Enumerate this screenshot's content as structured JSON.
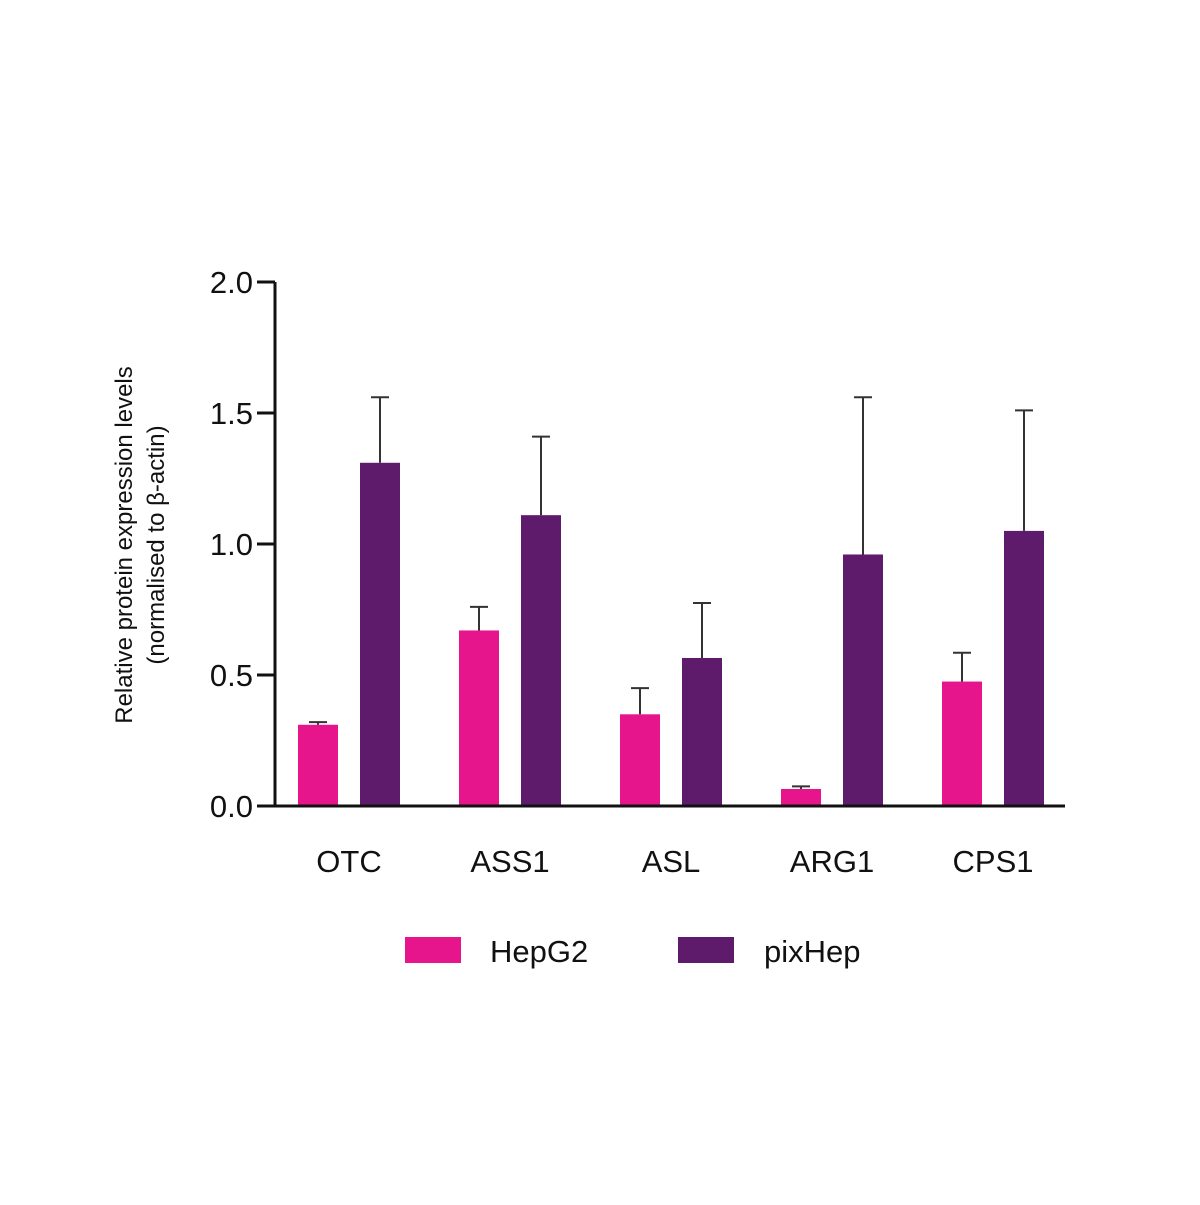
{
  "chart_data": {
    "type": "bar",
    "categories": [
      "OTC",
      "ASS1",
      "ASL",
      "ARG1",
      "CPS1"
    ],
    "series": [
      {
        "name": "HepG2",
        "color": "#e6158c",
        "values": [
          0.31,
          0.67,
          0.35,
          0.065,
          0.475
        ],
        "errors": [
          0.01,
          0.09,
          0.1,
          0.01,
          0.11
        ]
      },
      {
        "name": "pixHep",
        "color": "#5e1a6b",
        "values": [
          1.31,
          1.11,
          0.565,
          0.96,
          1.05
        ],
        "errors": [
          0.25,
          0.3,
          0.21,
          0.6,
          0.46
        ]
      }
    ],
    "ylabel_lines": [
      "Relative protein expression levels",
      "(normalised to β-actin)"
    ],
    "ylim": [
      0,
      2.0
    ],
    "yticks": [
      "0.0",
      "0.5",
      "1.0",
      "1.5",
      "2.0"
    ],
    "ytick_values": [
      0,
      0.5,
      1.0,
      1.5,
      2.0
    ],
    "grid": false,
    "legend_position": "bottom-center"
  }
}
